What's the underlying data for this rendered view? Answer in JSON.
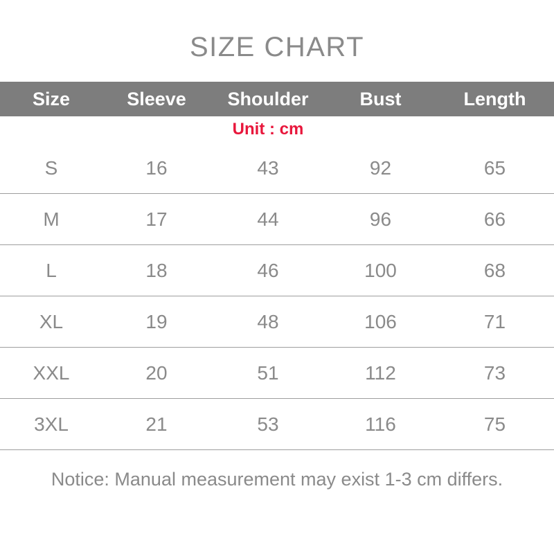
{
  "title": "SIZE CHART",
  "unit_label": "Unit : cm",
  "notice": "Notice: Manual measurement may exist 1-3 cm differs.",
  "colors": {
    "title_text": "#8a8a8a",
    "header_background": "#7d7d7d",
    "header_text": "#ffffff",
    "unit_text": "#e8173c",
    "body_text": "#8a8a8a",
    "divider": "#9d9d9d"
  },
  "chart_data": {
    "type": "table",
    "title": "SIZE CHART",
    "unit": "cm",
    "columns": [
      "Size",
      "Sleeve",
      "Shoulder",
      "Bust",
      "Length"
    ],
    "rows": [
      [
        "S",
        "16",
        "43",
        "92",
        "65"
      ],
      [
        "M",
        "17",
        "44",
        "96",
        "66"
      ],
      [
        "L",
        "18",
        "46",
        "100",
        "68"
      ],
      [
        "XL",
        "19",
        "48",
        "106",
        "71"
      ],
      [
        "XXL",
        "20",
        "51",
        "112",
        "73"
      ],
      [
        "3XL",
        "21",
        "53",
        "116",
        "75"
      ]
    ]
  }
}
